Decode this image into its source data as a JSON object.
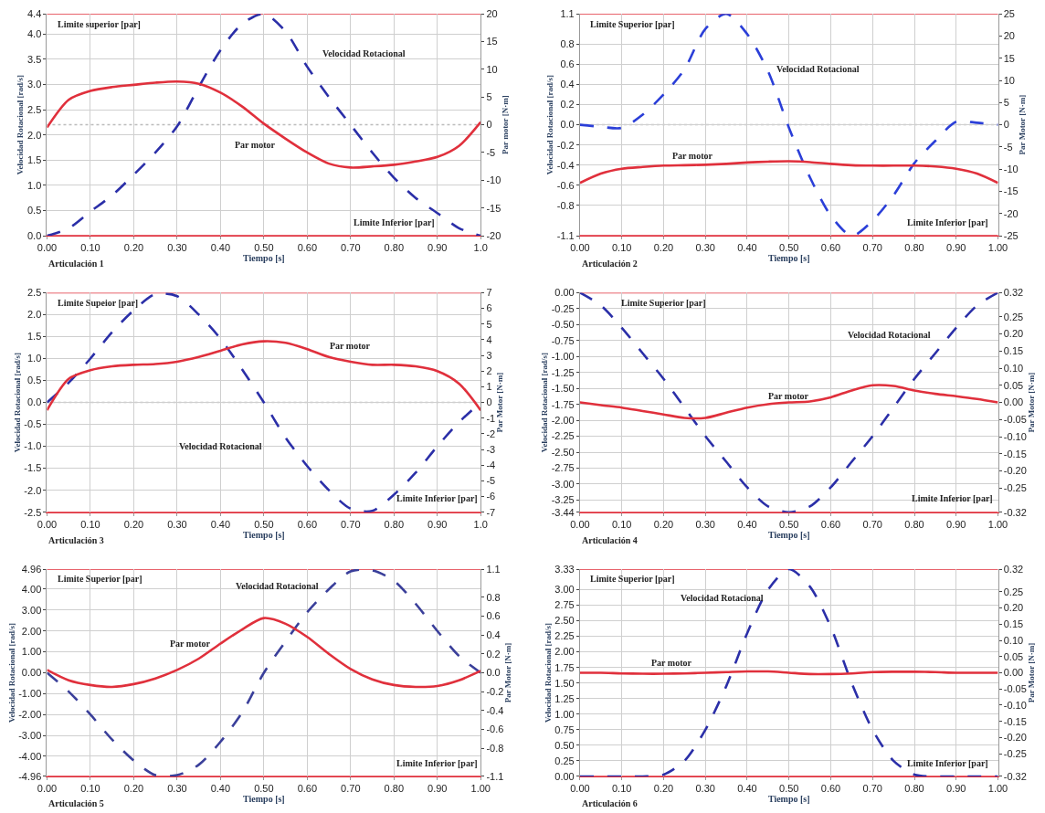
{
  "chart_data": [
    {
      "type": "line",
      "xlabel": "Tiempo [s]",
      "ylabel": "Velocidad Rotacional [rad/s]",
      "y2label": "Par motor [N·m]",
      "grid": true,
      "x": [
        0,
        0.05,
        0.1,
        0.15,
        0.2,
        0.25,
        0.3,
        0.35,
        0.4,
        0.45,
        0.5,
        0.55,
        0.6,
        0.65,
        0.7,
        0.75,
        0.8,
        0.85,
        0.9,
        0.95,
        1.0
      ],
      "xlim": [
        0,
        1
      ],
      "xticks": [
        {
          "value": 0,
          "label": "0.00"
        },
        {
          "value": 0.1,
          "label": "0.10"
        },
        {
          "value": 0.2,
          "label": "0.20"
        },
        {
          "value": 0.3,
          "label": "0.30"
        },
        {
          "value": 0.4,
          "label": "0.40"
        },
        {
          "value": 0.5,
          "label": "0.50"
        },
        {
          "value": 0.6,
          "label": "0.60"
        },
        {
          "value": 0.7,
          "label": "0.70"
        },
        {
          "value": 0.8,
          "label": "0.80"
        },
        {
          "value": 0.9,
          "label": "0.90"
        },
        {
          "value": 1,
          "label": "1.0"
        }
      ],
      "ylim": [
        0,
        4.4
      ],
      "yticks": [
        {
          "value": 0,
          "label": "0.0"
        },
        {
          "value": 0.5,
          "label": "0.5"
        },
        {
          "value": 1,
          "label": "1.0"
        },
        {
          "value": 1.5,
          "label": "1.5"
        },
        {
          "value": 2,
          "label": "2.0"
        },
        {
          "value": 2.5,
          "label": "2.5"
        },
        {
          "value": 3,
          "label": "3.0"
        },
        {
          "value": 3.5,
          "label": "3.5"
        },
        {
          "value": 4,
          "label": "4.0"
        },
        {
          "value": 4.4,
          "label": "4.4"
        }
      ],
      "y2lim": [
        -20,
        20
      ],
      "y2ticks": [
        -20,
        -15,
        -10,
        -5,
        0,
        5,
        10,
        15,
        20
      ],
      "series": [
        {
          "color": "#2b2fa8",
          "axis": "y",
          "line_style": "dashed",
          "values": [
            0,
            0.15,
            0.48,
            0.8,
            1.21,
            1.65,
            2.17,
            2.95,
            3.68,
            4.2,
            4.4,
            4.05,
            3.35,
            2.75,
            2.2,
            1.65,
            1.15,
            0.75,
            0.45,
            0.15,
            0
          ]
        },
        {
          "color": "#e0303c",
          "axis": "y2",
          "line_style": "solid",
          "values": [
            -0.5,
            4.5,
            6.1,
            6.8,
            7.2,
            7.6,
            7.8,
            7.4,
            5.8,
            3.3,
            0.2,
            -2.5,
            -5,
            -7,
            -7.7,
            -7.5,
            -7.2,
            -6.6,
            -5.8,
            -3.8,
            0.5
          ]
        }
      ],
      "ref_lines": [
        {
          "axis": "y2",
          "value": 20,
          "color": "#e0303c",
          "line_style": "solid"
        },
        {
          "axis": "y2",
          "value": -20,
          "color": "#e0303c",
          "line_style": "solid"
        },
        {
          "axis": "y2",
          "value": 0,
          "color": "#bbbbbb",
          "line_style": "dotted"
        }
      ],
      "annotations": [
        "Limite superior [par]",
        "Velocidad Rotacional",
        "Par motor",
        "Limite Inferior [par]",
        "Articulación 1"
      ]
    },
    {
      "type": "line",
      "xlabel": "Tiempo [s]",
      "ylabel": "Velocidad Rotacional [rad/s]",
      "y2label": "Par Motor [N·m]",
      "grid": true,
      "x": [
        0,
        0.05,
        0.1,
        0.15,
        0.2,
        0.25,
        0.3,
        0.35,
        0.4,
        0.45,
        0.5,
        0.55,
        0.6,
        0.65,
        0.7,
        0.75,
        0.8,
        0.85,
        0.9,
        0.95,
        1.0
      ],
      "xlim": [
        0,
        1
      ],
      "xticks": [
        {
          "value": 0,
          "label": "0.00"
        },
        {
          "value": 0.1,
          "label": "0.10"
        },
        {
          "value": 0.2,
          "label": "0.20"
        },
        {
          "value": 0.3,
          "label": "0.30"
        },
        {
          "value": 0.4,
          "label": "0.40"
        },
        {
          "value": 0.5,
          "label": "0.50"
        },
        {
          "value": 0.6,
          "label": "0.60"
        },
        {
          "value": 0.7,
          "label": "0.70"
        },
        {
          "value": 0.8,
          "label": "0.80"
        },
        {
          "value": 0.9,
          "label": "0.90"
        },
        {
          "value": 1,
          "label": "1.00"
        }
      ],
      "ylim": [
        -1.1,
        1.1
      ],
      "yticks": [
        -1.1,
        -0.8,
        -0.6,
        -0.4,
        -0.2,
        {
          "value": 0,
          "label": "0.0"
        },
        0.2,
        0.4,
        0.6,
        0.8,
        1.1
      ],
      "y2lim": [
        -25,
        25
      ],
      "y2ticks": [
        -25,
        -20,
        -15,
        -10,
        -5,
        0,
        5,
        10,
        15,
        20,
        25
      ],
      "series": [
        {
          "color": "#2b3fd8",
          "axis": "y",
          "line_style": "dashed",
          "values": [
            0,
            -0.02,
            -0.03,
            0.1,
            0.3,
            0.55,
            0.95,
            1.1,
            0.9,
            0.53,
            -0.03,
            -0.52,
            -0.9,
            -1.1,
            -0.95,
            -0.7,
            -0.38,
            -0.16,
            0.03,
            0.02,
            0
          ]
        },
        {
          "color": "#e0303c",
          "axis": "y2",
          "line_style": "solid",
          "values": [
            -13.1,
            -11,
            -9.9,
            -9.5,
            -9.2,
            -9.1,
            -9,
            -8.8,
            -8.5,
            -8.3,
            -8.2,
            -8.4,
            -8.8,
            -9.1,
            -9.2,
            -9.2,
            -9.2,
            -9.4,
            -9.9,
            -11,
            -13.1
          ]
        }
      ],
      "ref_lines": [
        {
          "axis": "y2",
          "value": 25,
          "color": "#e0303c",
          "line_style": "solid"
        },
        {
          "axis": "y2",
          "value": -25,
          "color": "#e0303c",
          "line_style": "solid"
        },
        {
          "axis": "y2",
          "value": 0,
          "color": "#bbbbbb",
          "line_style": "dotted"
        }
      ],
      "annotations": [
        "Limite Superior [par]",
        "Velocidad Rotacional",
        "Par motor",
        "Limite Inferior [par]",
        "Articulación 2"
      ]
    },
    {
      "type": "line",
      "xlabel": "Tiempo [s]",
      "ylabel": "Velocidad Rotacional [rad/s]",
      "y2label": "Par Motor [N·m]",
      "grid": true,
      "x": [
        0,
        0.05,
        0.1,
        0.15,
        0.2,
        0.25,
        0.3,
        0.35,
        0.4,
        0.45,
        0.5,
        0.55,
        0.6,
        0.65,
        0.7,
        0.75,
        0.8,
        0.85,
        0.9,
        0.95,
        1.0
      ],
      "xlim": [
        0,
        1
      ],
      "xticks": [
        {
          "value": 0,
          "label": "0.00"
        },
        {
          "value": 0.1,
          "label": "0.10"
        },
        {
          "value": 0.2,
          "label": "0.20"
        },
        {
          "value": 0.3,
          "label": "0.30"
        },
        {
          "value": 0.4,
          "label": "0.40"
        },
        {
          "value": 0.5,
          "label": "0.50"
        },
        {
          "value": 0.6,
          "label": "0.60"
        },
        {
          "value": 0.7,
          "label": "0.70"
        },
        {
          "value": 0.8,
          "label": "0.80"
        },
        {
          "value": 0.9,
          "label": "0.90"
        },
        {
          "value": 1,
          "label": "1.0"
        }
      ],
      "ylim": [
        -2.5,
        2.5
      ],
      "yticks": [
        -2.5,
        {
          "value": -2,
          "label": "-2.0"
        },
        -1.5,
        {
          "value": -1,
          "label": "-1.0"
        },
        -0.5,
        {
          "value": 0,
          "label": "0.0"
        },
        0.5,
        {
          "value": 1,
          "label": "1.0"
        },
        1.5,
        {
          "value": 2,
          "label": "2.0"
        },
        2.5
      ],
      "y2lim": [
        -7,
        7
      ],
      "y2ticks": [
        -7,
        -6,
        -5,
        -4,
        -3,
        -2,
        -1,
        0,
        1,
        2,
        3,
        4,
        5,
        6,
        7
      ],
      "series": [
        {
          "color": "#2b2fa8",
          "axis": "y",
          "line_style": "dashed",
          "values": [
            0,
            0.45,
            1.0,
            1.6,
            2.1,
            2.47,
            2.42,
            2.0,
            1.45,
            0.75,
            0,
            -0.8,
            -1.45,
            -2.0,
            -2.42,
            -2.47,
            -2.1,
            -1.6,
            -1.0,
            -0.45,
            0
          ]
        },
        {
          "color": "#e0303c",
          "axis": "y2",
          "line_style": "solid",
          "values": [
            -0.5,
            1.5,
            2.05,
            2.3,
            2.4,
            2.45,
            2.6,
            2.9,
            3.3,
            3.7,
            3.9,
            3.8,
            3.4,
            2.9,
            2.6,
            2.4,
            2.4,
            2.3,
            2.0,
            1.2,
            -0.5
          ]
        }
      ],
      "ref_lines": [
        {
          "axis": "y2",
          "value": 7,
          "color": "#e0303c",
          "line_style": "solid"
        },
        {
          "axis": "y2",
          "value": -7,
          "color": "#e0303c",
          "line_style": "solid"
        },
        {
          "axis": "y2",
          "value": 0,
          "color": "#bbbbbb",
          "line_style": "dotted"
        }
      ],
      "annotations": [
        "Limite Supeior [par]",
        "Par motor",
        "Velocidad Rotacional",
        "Limite Inferior [par]",
        "Articulación 3"
      ]
    },
    {
      "type": "line",
      "xlabel": "Tiempo [s]",
      "ylabel": "Velocidad Rotacional [rad/s]",
      "y2label": "Par Motor [N·m]",
      "grid": true,
      "x": [
        0,
        0.05,
        0.1,
        0.15,
        0.2,
        0.25,
        0.3,
        0.35,
        0.4,
        0.45,
        0.5,
        0.55,
        0.6,
        0.65,
        0.7,
        0.75,
        0.8,
        0.85,
        0.9,
        0.95,
        1.0
      ],
      "xlim": [
        0,
        1
      ],
      "xticks": [
        {
          "value": 0,
          "label": "0.00"
        },
        {
          "value": 0.1,
          "label": "0.10"
        },
        {
          "value": 0.2,
          "label": "0.20"
        },
        {
          "value": 0.3,
          "label": "0.30"
        },
        {
          "value": 0.4,
          "label": "0.40"
        },
        {
          "value": 0.5,
          "label": "0.50"
        },
        {
          "value": 0.6,
          "label": "0.60"
        },
        {
          "value": 0.7,
          "label": "0.70"
        },
        {
          "value": 0.8,
          "label": "0.80"
        },
        {
          "value": 0.9,
          "label": "0.90"
        },
        {
          "value": 1,
          "label": "1.00"
        }
      ],
      "ylim": [
        -3.44,
        0
      ],
      "yticks": [
        -3.44,
        -3.25,
        {
          "value": -3,
          "label": "-3.00"
        },
        -2.75,
        {
          "value": -2.5,
          "label": "-2.50"
        },
        -2.25,
        {
          "value": -2,
          "label": "-2.00"
        },
        -1.75,
        {
          "value": -1.5,
          "label": "-1.50"
        },
        -1.25,
        {
          "value": -1,
          "label": "-1.00"
        },
        -0.75,
        {
          "value": -0.5,
          "label": "-0.50"
        },
        -0.25,
        {
          "value": 0,
          "label": "0.00"
        }
      ],
      "y2lim": [
        -0.32,
        0.32
      ],
      "y2ticks": [
        -0.32,
        -0.25,
        {
          "value": -0.2,
          "label": "-0.20"
        },
        -0.15,
        {
          "value": -0.1,
          "label": "-0.10"
        },
        -0.05,
        {
          "value": 0,
          "label": "0.00"
        },
        0.05,
        {
          "value": 0.1,
          "label": "0.10"
        },
        0.15,
        {
          "value": 0.2,
          "label": "0.20"
        },
        0.25,
        0.32
      ],
      "series": [
        {
          "color": "#2b2fa8",
          "axis": "y",
          "line_style": "dashed",
          "values": [
            0,
            -0.2,
            -0.55,
            -0.95,
            -1.35,
            -1.8,
            -2.25,
            -2.65,
            -3.05,
            -3.35,
            -3.44,
            -3.35,
            -3.05,
            -2.65,
            -2.25,
            -1.8,
            -1.35,
            -0.95,
            -0.55,
            -0.2,
            0
          ]
        },
        {
          "color": "#e0303c",
          "axis": "y2",
          "line_style": "solid",
          "values": [
            0,
            -0.008,
            -0.015,
            -0.025,
            -0.035,
            -0.045,
            -0.045,
            -0.03,
            -0.015,
            -0.005,
            0,
            0.003,
            0.015,
            0.035,
            0.05,
            0.048,
            0.035,
            0.025,
            0.018,
            0.01,
            0
          ]
        }
      ],
      "ref_lines": [
        {
          "axis": "y2",
          "value": 0.32,
          "color": "#e0303c",
          "line_style": "solid"
        },
        {
          "axis": "y2",
          "value": -0.32,
          "color": "#e0303c",
          "line_style": "solid"
        }
      ],
      "annotations": [
        "Limite Superior [par]",
        "Velocidad Rotacional",
        "Par motor",
        "Limite Inferior [par]",
        "Articulación 4"
      ]
    },
    {
      "type": "line",
      "xlabel": "Tiempo [s]",
      "ylabel": "Velocidad Rotacional [rad/s]",
      "y2label": "Par Motor [N·m]",
      "grid": true,
      "x": [
        0,
        0.05,
        0.1,
        0.15,
        0.2,
        0.25,
        0.3,
        0.35,
        0.4,
        0.45,
        0.5,
        0.55,
        0.6,
        0.65,
        0.7,
        0.75,
        0.8,
        0.85,
        0.9,
        0.95,
        1.0
      ],
      "xlim": [
        0,
        1
      ],
      "xticks": [
        {
          "value": 0,
          "label": "0.00"
        },
        {
          "value": 0.1,
          "label": "0.10"
        },
        {
          "value": 0.2,
          "label": "0.20"
        },
        {
          "value": 0.3,
          "label": "0.30"
        },
        {
          "value": 0.4,
          "label": "0.40"
        },
        {
          "value": 0.5,
          "label": "0.50"
        },
        {
          "value": 0.6,
          "label": "0.60"
        },
        {
          "value": 0.7,
          "label": "0.70"
        },
        {
          "value": 0.8,
          "label": "0.80"
        },
        {
          "value": 0.9,
          "label": "0.90"
        },
        {
          "value": 1,
          "label": "1.00"
        }
      ],
      "ylim": [
        -4.96,
        4.96
      ],
      "yticks": [
        -4.96,
        {
          "value": -4,
          "label": "-4.00"
        },
        {
          "value": -3,
          "label": "-3.00"
        },
        {
          "value": -2,
          "label": "-2.00"
        },
        {
          "value": -1,
          "label": "-1.00"
        },
        {
          "value": 0,
          "label": "0.00"
        },
        {
          "value": 1,
          "label": "1.00"
        },
        {
          "value": 2,
          "label": "2.00"
        },
        {
          "value": 3,
          "label": "3.00"
        },
        {
          "value": 4,
          "label": "4.00"
        },
        4.96
      ],
      "y2lim": [
        -1.1,
        1.1
      ],
      "y2ticks": [
        -1.1,
        -0.8,
        -0.6,
        -0.4,
        -0.2,
        {
          "value": 0,
          "label": "0.0"
        },
        0.2,
        0.4,
        0.6,
        0.8,
        1.1
      ],
      "series": [
        {
          "color": "#3a3f9a",
          "axis": "y",
          "line_style": "dashed",
          "values": [
            0,
            -0.9,
            -2.0,
            -3.2,
            -4.2,
            -4.9,
            -4.9,
            -4.4,
            -3.3,
            -1.9,
            0,
            1.5,
            2.9,
            4.0,
            4.85,
            4.9,
            4.4,
            3.3,
            2.0,
            0.8,
            0
          ]
        },
        {
          "color": "#e0303c",
          "axis": "y2",
          "line_style": "solid",
          "values": [
            0.03,
            -0.08,
            -0.13,
            -0.15,
            -0.12,
            -0.06,
            0.03,
            0.15,
            0.31,
            0.46,
            0.58,
            0.52,
            0.38,
            0.2,
            0.04,
            -0.07,
            -0.13,
            -0.15,
            -0.14,
            -0.08,
            0.02
          ]
        }
      ],
      "ref_lines": [
        {
          "axis": "y2",
          "value": 1.1,
          "color": "#e0303c",
          "line_style": "solid"
        },
        {
          "axis": "y2",
          "value": -1.1,
          "color": "#e0303c",
          "line_style": "solid"
        }
      ],
      "annotations": [
        "Limite Superior [par]",
        "Velocidad Rotacional",
        "Par motor",
        "Limite Inferior [par]",
        "Articulación 5"
      ]
    },
    {
      "type": "line",
      "xlabel": "Tiempo [s]",
      "ylabel": "Velocidad Rotacional [rad/s]",
      "y2label": "Par Motor [N·m]",
      "grid": true,
      "x": [
        0,
        0.05,
        0.1,
        0.15,
        0.2,
        0.25,
        0.3,
        0.35,
        0.4,
        0.45,
        0.5,
        0.55,
        0.6,
        0.65,
        0.7,
        0.75,
        0.8,
        0.85,
        0.9,
        0.95,
        1.0
      ],
      "xlim": [
        0,
        1
      ],
      "xticks": [
        {
          "value": 0,
          "label": "0.00"
        },
        {
          "value": 0.1,
          "label": "0.10"
        },
        {
          "value": 0.2,
          "label": "0.20"
        },
        {
          "value": 0.3,
          "label": "0.30"
        },
        {
          "value": 0.4,
          "label": "0.40"
        },
        {
          "value": 0.5,
          "label": "0.50"
        },
        {
          "value": 0.6,
          "label": "0.60"
        },
        {
          "value": 0.7,
          "label": "0.70"
        },
        {
          "value": 0.8,
          "label": "0.80"
        },
        {
          "value": 0.9,
          "label": "0.90"
        },
        {
          "value": 1,
          "label": "1.00"
        }
      ],
      "ylim": [
        0,
        3.33
      ],
      "yticks": [
        {
          "value": 0,
          "label": "0.00"
        },
        0.25,
        {
          "value": 0.5,
          "label": "0.50"
        },
        0.75,
        {
          "value": 1,
          "label": "1.00"
        },
        1.25,
        {
          "value": 1.5,
          "label": "1.50"
        },
        1.75,
        {
          "value": 2,
          "label": "2.00"
        },
        2.25,
        {
          "value": 2.5,
          "label": "2.50"
        },
        2.75,
        {
          "value": 3,
          "label": "3.00"
        },
        3.33
      ],
      "y2lim": [
        -0.32,
        0.32
      ],
      "y2ticks": [
        -0.32,
        -0.25,
        {
          "value": -0.2,
          "label": "-0.20"
        },
        -0.15,
        {
          "value": -0.1,
          "label": "-0.10"
        },
        -0.05,
        {
          "value": 0,
          "label": "0.00"
        },
        0.05,
        {
          "value": 0.1,
          "label": "0.10"
        },
        0.15,
        {
          "value": 0.2,
          "label": "0.20"
        },
        0.25,
        0.32
      ],
      "series": [
        {
          "color": "#2b2fa8",
          "axis": "y",
          "line_style": "dashed",
          "values": [
            0,
            0,
            0,
            0,
            0.03,
            0.25,
            0.75,
            1.45,
            2.3,
            3.0,
            3.33,
            3.05,
            2.4,
            1.5,
            0.75,
            0.25,
            0.03,
            0,
            0,
            0,
            0
          ]
        },
        {
          "color": "#e0303c",
          "axis": "y2",
          "line_style": "solid",
          "values": [
            0,
            0,
            -0.002,
            -0.003,
            -0.003,
            -0.002,
            0,
            0.002,
            0.004,
            0.004,
            0,
            -0.004,
            -0.004,
            -0.002,
            0.002,
            0.003,
            0.003,
            0.002,
            0,
            0,
            0
          ]
        }
      ],
      "ref_lines": [
        {
          "axis": "y2",
          "value": 0.32,
          "color": "#e0303c",
          "line_style": "solid"
        },
        {
          "axis": "y2",
          "value": -0.32,
          "color": "#e0303c",
          "line_style": "solid"
        }
      ],
      "annotations": [
        "Limite Superior [par]",
        "Velocidad Rotacional",
        "Par motor",
        "Limite Inferior [par]",
        "Articulación 6"
      ]
    }
  ]
}
